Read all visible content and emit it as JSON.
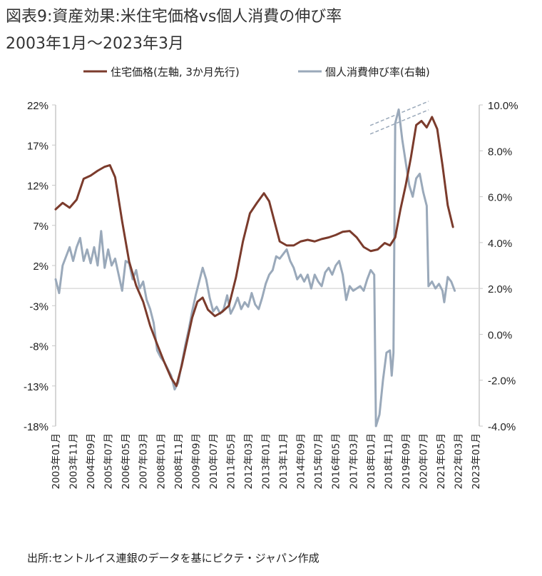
{
  "title": "図表9:資産効果:米住宅価格vs個人消費の伸び率",
  "subtitle": "2003年1月～2023年3月",
  "source": "出所:セントルイス連銀のデータを基にピクテ・ジャパン作成",
  "colors": {
    "house": "#7b3b2c",
    "consumption": "#9aa9ba",
    "axis": "#c8c8c8",
    "zero": "#dcdcdc"
  },
  "chart_data": {
    "type": "line",
    "y_left": {
      "ticks": [
        "22%",
        "17%",
        "12%",
        "7%",
        "2%",
        "-3%",
        "-8%",
        "-13%",
        "-18%"
      ],
      "range": [
        -18,
        22
      ]
    },
    "y_right": {
      "ticks": [
        "10.0%",
        "8.0%",
        "6.0%",
        "4.0%",
        "2.0%",
        "0.0%",
        "-2.0%",
        "-4.0%"
      ],
      "range": [
        -4,
        10
      ]
    },
    "x_labels": [
      "2003年01月",
      "2003年11月",
      "2004年09月",
      "2005年07月",
      "2006年05月",
      "2007年03月",
      "2008年01月",
      "2008年11月",
      "2009年09月",
      "2010年07月",
      "2011年05月",
      "2012年03月",
      "2013年01月",
      "2013年11月",
      "2014年09月",
      "2015年07月",
      "2016年05月",
      "2017年03月",
      "2018年01月",
      "2018年11月",
      "2019年09月",
      "2020年07月",
      "2021年05月",
      "2022年03月",
      "2023年01月"
    ],
    "series": [
      {
        "name": "住宅価格(左軸, 3か月先行)",
        "axis": "left",
        "points": [
          [
            0,
            9.0
          ],
          [
            4,
            9.8
          ],
          [
            8,
            9.2
          ],
          [
            12,
            10.2
          ],
          [
            16,
            12.8
          ],
          [
            20,
            13.2
          ],
          [
            24,
            13.8
          ],
          [
            28,
            14.3
          ],
          [
            31,
            14.5
          ],
          [
            34,
            13.0
          ],
          [
            38,
            7.5
          ],
          [
            42,
            2.5
          ],
          [
            46,
            -0.5
          ],
          [
            50,
            -2.5
          ],
          [
            54,
            -5.5
          ],
          [
            58,
            -7.8
          ],
          [
            62,
            -10.0
          ],
          [
            66,
            -12.0
          ],
          [
            69,
            -13.0
          ],
          [
            72,
            -10.5
          ],
          [
            75,
            -7.5
          ],
          [
            78,
            -4.5
          ],
          [
            81,
            -2.5
          ],
          [
            84,
            -2.0
          ],
          [
            87,
            -3.5
          ],
          [
            91,
            -4.3
          ],
          [
            95,
            -3.8
          ],
          [
            99,
            -3.0
          ],
          [
            103,
            0.5
          ],
          [
            107,
            5.0
          ],
          [
            111,
            8.5
          ],
          [
            115,
            9.8
          ],
          [
            119,
            11.0
          ],
          [
            122,
            10.0
          ],
          [
            125,
            7.5
          ],
          [
            128,
            5.0
          ],
          [
            132,
            4.5
          ],
          [
            136,
            4.5
          ],
          [
            140,
            5.0
          ],
          [
            144,
            5.2
          ],
          [
            148,
            5.0
          ],
          [
            152,
            5.3
          ],
          [
            156,
            5.5
          ],
          [
            160,
            5.8
          ],
          [
            164,
            6.2
          ],
          [
            168,
            6.3
          ],
          [
            172,
            5.5
          ],
          [
            176,
            4.3
          ],
          [
            180,
            3.8
          ],
          [
            184,
            4.0
          ],
          [
            188,
            4.8
          ],
          [
            191,
            4.5
          ],
          [
            194,
            5.5
          ],
          [
            197,
            9.0
          ],
          [
            200,
            12.0
          ],
          [
            203,
            15.5
          ],
          [
            206,
            19.5
          ],
          [
            209,
            20.0
          ],
          [
            212,
            19.2
          ],
          [
            215,
            20.5
          ],
          [
            218,
            19.0
          ],
          [
            221,
            14.5
          ],
          [
            224,
            9.5
          ],
          [
            227,
            6.8
          ]
        ]
      },
      {
        "name": "個人消費伸び率(右軸)",
        "axis": "right",
        "points": [
          [
            0,
            2.4
          ],
          [
            2,
            1.8
          ],
          [
            4,
            3.0
          ],
          [
            6,
            3.4
          ],
          [
            8,
            3.8
          ],
          [
            10,
            3.2
          ],
          [
            12,
            3.8
          ],
          [
            14,
            4.2
          ],
          [
            16,
            3.2
          ],
          [
            18,
            3.7
          ],
          [
            20,
            3.1
          ],
          [
            22,
            3.8
          ],
          [
            24,
            3.0
          ],
          [
            26,
            4.5
          ],
          [
            28,
            2.9
          ],
          [
            30,
            3.7
          ],
          [
            32,
            3.0
          ],
          [
            34,
            3.3
          ],
          [
            36,
            2.6
          ],
          [
            38,
            1.9
          ],
          [
            40,
            3.2
          ],
          [
            42,
            3.1
          ],
          [
            44,
            2.4
          ],
          [
            46,
            2.8
          ],
          [
            48,
            2.0
          ],
          [
            50,
            2.3
          ],
          [
            52,
            1.5
          ],
          [
            54,
            1.1
          ],
          [
            56,
            0.5
          ],
          [
            58,
            -0.7
          ],
          [
            60,
            -1.0
          ],
          [
            62,
            -1.2
          ],
          [
            64,
            -1.5
          ],
          [
            66,
            -1.8
          ],
          [
            68,
            -2.4
          ],
          [
            70,
            -2.1
          ],
          [
            72,
            -1.3
          ],
          [
            74,
            -0.5
          ],
          [
            76,
            0.2
          ],
          [
            78,
            1.0
          ],
          [
            80,
            1.7
          ],
          [
            82,
            2.3
          ],
          [
            84,
            2.9
          ],
          [
            86,
            2.4
          ],
          [
            88,
            1.6
          ],
          [
            90,
            1.0
          ],
          [
            92,
            1.2
          ],
          [
            94,
            0.9
          ],
          [
            96,
            1.1
          ],
          [
            98,
            1.7
          ],
          [
            100,
            0.9
          ],
          [
            102,
            1.2
          ],
          [
            104,
            1.6
          ],
          [
            106,
            1.1
          ],
          [
            108,
            1.4
          ],
          [
            110,
            1.2
          ],
          [
            112,
            1.8
          ],
          [
            114,
            1.3
          ],
          [
            116,
            1.1
          ],
          [
            118,
            1.6
          ],
          [
            120,
            2.2
          ],
          [
            122,
            2.6
          ],
          [
            124,
            2.8
          ],
          [
            126,
            3.4
          ],
          [
            128,
            3.3
          ],
          [
            130,
            3.5
          ],
          [
            132,
            3.7
          ],
          [
            134,
            3.2
          ],
          [
            136,
            2.9
          ],
          [
            138,
            2.4
          ],
          [
            140,
            2.6
          ],
          [
            142,
            2.3
          ],
          [
            144,
            2.6
          ],
          [
            146,
            2.0
          ],
          [
            148,
            2.6
          ],
          [
            150,
            2.3
          ],
          [
            152,
            2.1
          ],
          [
            154,
            2.7
          ],
          [
            156,
            2.9
          ],
          [
            158,
            2.6
          ],
          [
            160,
            3.0
          ],
          [
            162,
            3.2
          ],
          [
            164,
            2.6
          ],
          [
            166,
            1.5
          ],
          [
            168,
            2.1
          ],
          [
            170,
            1.9
          ],
          [
            172,
            2.0
          ],
          [
            174,
            2.1
          ],
          [
            176,
            1.9
          ],
          [
            178,
            2.4
          ],
          [
            180,
            2.8
          ],
          [
            182,
            2.6
          ],
          [
            183,
            -4.0
          ],
          [
            185,
            -3.5
          ],
          [
            187,
            -2.0
          ],
          [
            189,
            -0.8
          ],
          [
            191,
            -0.7
          ],
          [
            192,
            -1.8
          ],
          [
            193,
            -0.8
          ],
          [
            194,
            9.2
          ],
          [
            196,
            9.8
          ],
          [
            198,
            8.5
          ],
          [
            200,
            7.5
          ],
          [
            202,
            6.5
          ],
          [
            204,
            6.0
          ],
          [
            206,
            6.8
          ],
          [
            208,
            7.0
          ],
          [
            210,
            6.2
          ],
          [
            212,
            5.6
          ],
          [
            213,
            2.1
          ],
          [
            215,
            2.3
          ],
          [
            217,
            2.0
          ],
          [
            219,
            2.2
          ],
          [
            221,
            1.9
          ],
          [
            222,
            1.4
          ],
          [
            224,
            2.5
          ],
          [
            226,
            2.3
          ],
          [
            228,
            1.9
          ]
        ]
      }
    ],
    "n_months": 243,
    "grid": false,
    "legend_position": "top"
  }
}
